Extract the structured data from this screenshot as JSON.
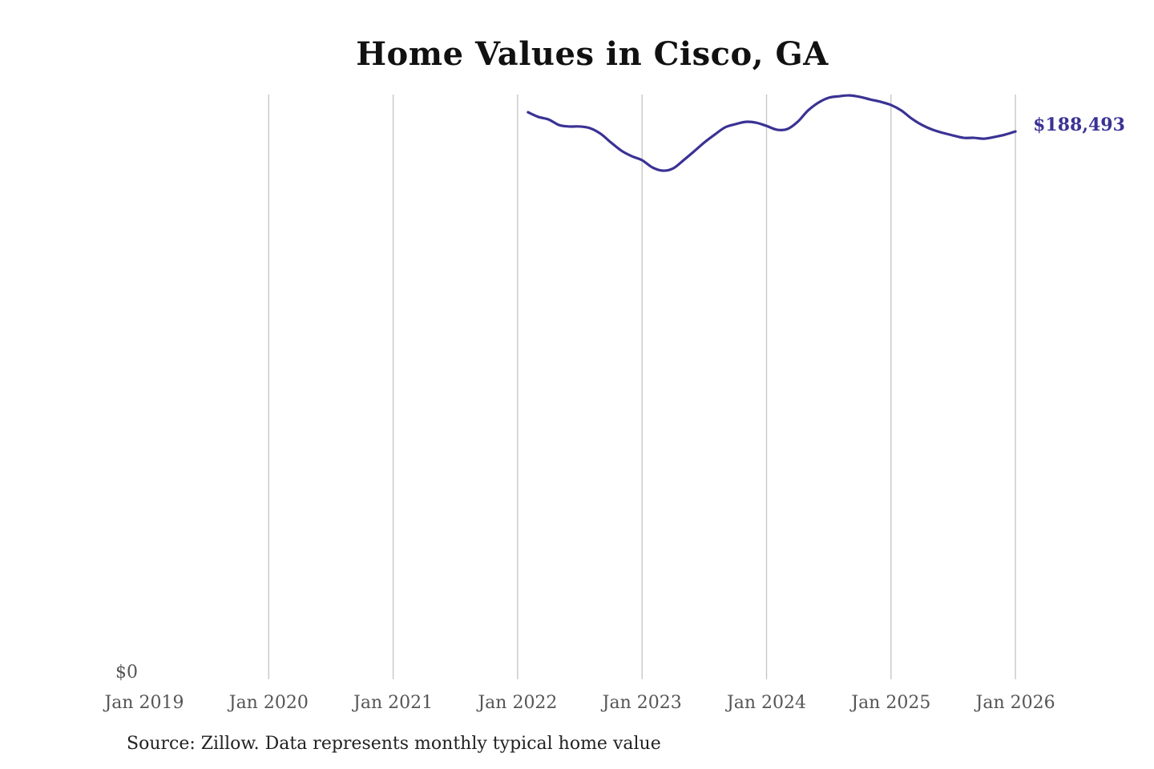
{
  "chart_data": {
    "type": "line",
    "title": "Home Values in Cisco, GA",
    "source": "Source: Zillow. Data represents monthly typical home value",
    "xlabel": "",
    "ylabel": "",
    "x_ticks": [
      "Jan 2019",
      "Jan 2020",
      "Jan 2021",
      "Jan 2022",
      "Jan 2023",
      "Jan 2024",
      "Jan 2025",
      "Jan 2026"
    ],
    "y_ticks": [
      "$0"
    ],
    "xlim": [
      "2019-01",
      "2026-01"
    ],
    "ylim": [
      0,
      201200
    ],
    "grid": "vertical",
    "line_color": "#3a3294",
    "end_label": "$188,493",
    "series": [
      {
        "x": [
          "2022-02",
          "2022-03",
          "2022-04",
          "2022-05",
          "2022-06",
          "2022-07",
          "2022-08",
          "2022-09",
          "2022-10",
          "2022-11",
          "2022-12",
          "2023-01",
          "2023-02",
          "2023-03",
          "2023-04",
          "2023-05",
          "2023-06",
          "2023-07",
          "2023-08",
          "2023-09",
          "2023-10",
          "2023-11",
          "2023-12",
          "2024-01",
          "2024-02",
          "2024-03",
          "2024-04",
          "2024-05",
          "2024-06",
          "2024-07",
          "2024-08",
          "2024-09",
          "2024-10",
          "2024-11",
          "2024-12",
          "2025-01",
          "2025-02",
          "2025-03",
          "2025-04",
          "2025-05",
          "2025-06",
          "2025-07",
          "2025-08",
          "2025-09",
          "2025-10",
          "2025-11",
          "2025-12",
          "2026-01"
        ],
        "values": [
          195100,
          193500,
          192600,
          190700,
          190200,
          190200,
          189600,
          187700,
          184700,
          181900,
          180000,
          178600,
          176100,
          175000,
          175800,
          178600,
          181600,
          184700,
          187400,
          189900,
          191000,
          191800,
          191500,
          190400,
          189100,
          189300,
          191800,
          195700,
          198400,
          200100,
          200600,
          200900,
          200400,
          199500,
          198700,
          197600,
          195700,
          192900,
          190700,
          189100,
          188000,
          187100,
          186300,
          186300,
          186000,
          186600,
          187400,
          188493
        ]
      }
    ]
  }
}
